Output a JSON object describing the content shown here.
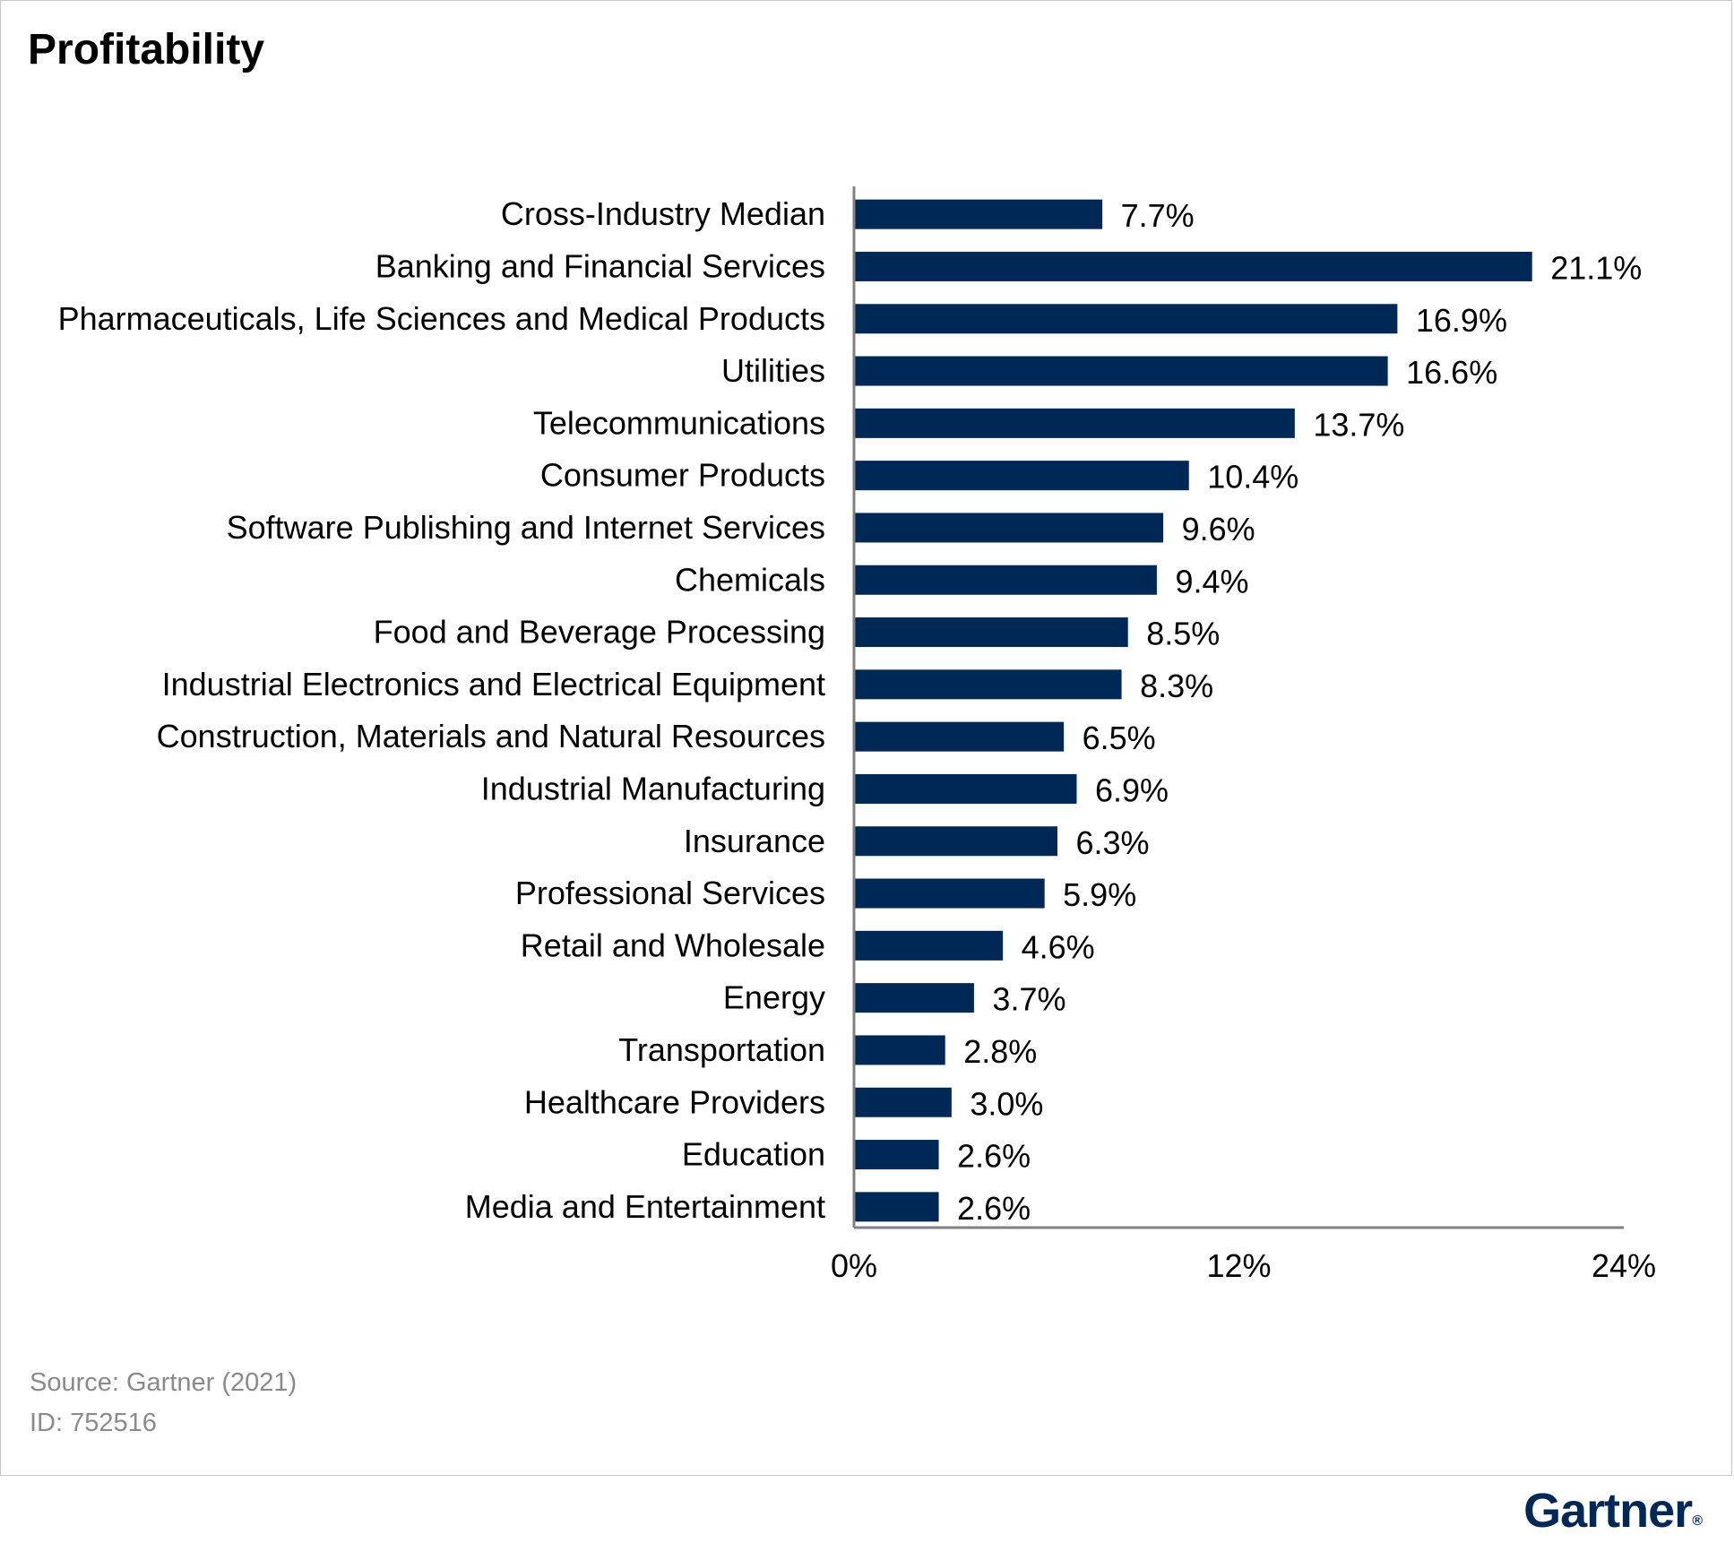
{
  "title": "Profitability",
  "chart_data": {
    "type": "bar",
    "orientation": "horizontal",
    "categories": [
      "Cross-Industry Median",
      "Banking and Financial Services",
      "Pharmaceuticals, Life Sciences and Medical Products",
      "Utilities",
      "Telecommunications",
      "Consumer Products",
      "Software Publishing and Internet Services",
      "Chemicals",
      "Food and Beverage Processing",
      "Industrial Electronics and Electrical Equipment",
      "Construction, Materials and Natural Resources",
      "Industrial Manufacturing",
      "Insurance",
      "Professional Services",
      "Retail and Wholesale",
      "Energy",
      "Transportation",
      "Healthcare Providers",
      "Education",
      "Media and Entertainment"
    ],
    "values": [
      7.7,
      21.1,
      16.9,
      16.6,
      13.7,
      10.4,
      9.6,
      9.4,
      8.5,
      8.3,
      6.5,
      6.9,
      6.3,
      5.9,
      4.6,
      3.7,
      2.8,
      3.0,
      2.6,
      2.6
    ],
    "value_labels": [
      "7.7%",
      "21.1%",
      "16.9%",
      "16.6%",
      "13.7%",
      "10.4%",
      "9.6%",
      "9.4%",
      "8.5%",
      "8.3%",
      "6.5%",
      "6.9%",
      "6.3%",
      "5.9%",
      "4.6%",
      "3.7%",
      "2.8%",
      "3.0%",
      "2.6%",
      "2.6%"
    ],
    "xlim": [
      0,
      24
    ],
    "x_ticks": [
      0,
      12,
      24
    ],
    "x_tick_labels": [
      "0%",
      "12%",
      "24%"
    ],
    "grid": false,
    "bar_color": "#002856"
  },
  "footer": {
    "source": "Source: Gartner (2021)",
    "id": "ID: 752516",
    "brand": "Gartner",
    "brand_mark": "®",
    "brand_color": "#002856"
  }
}
